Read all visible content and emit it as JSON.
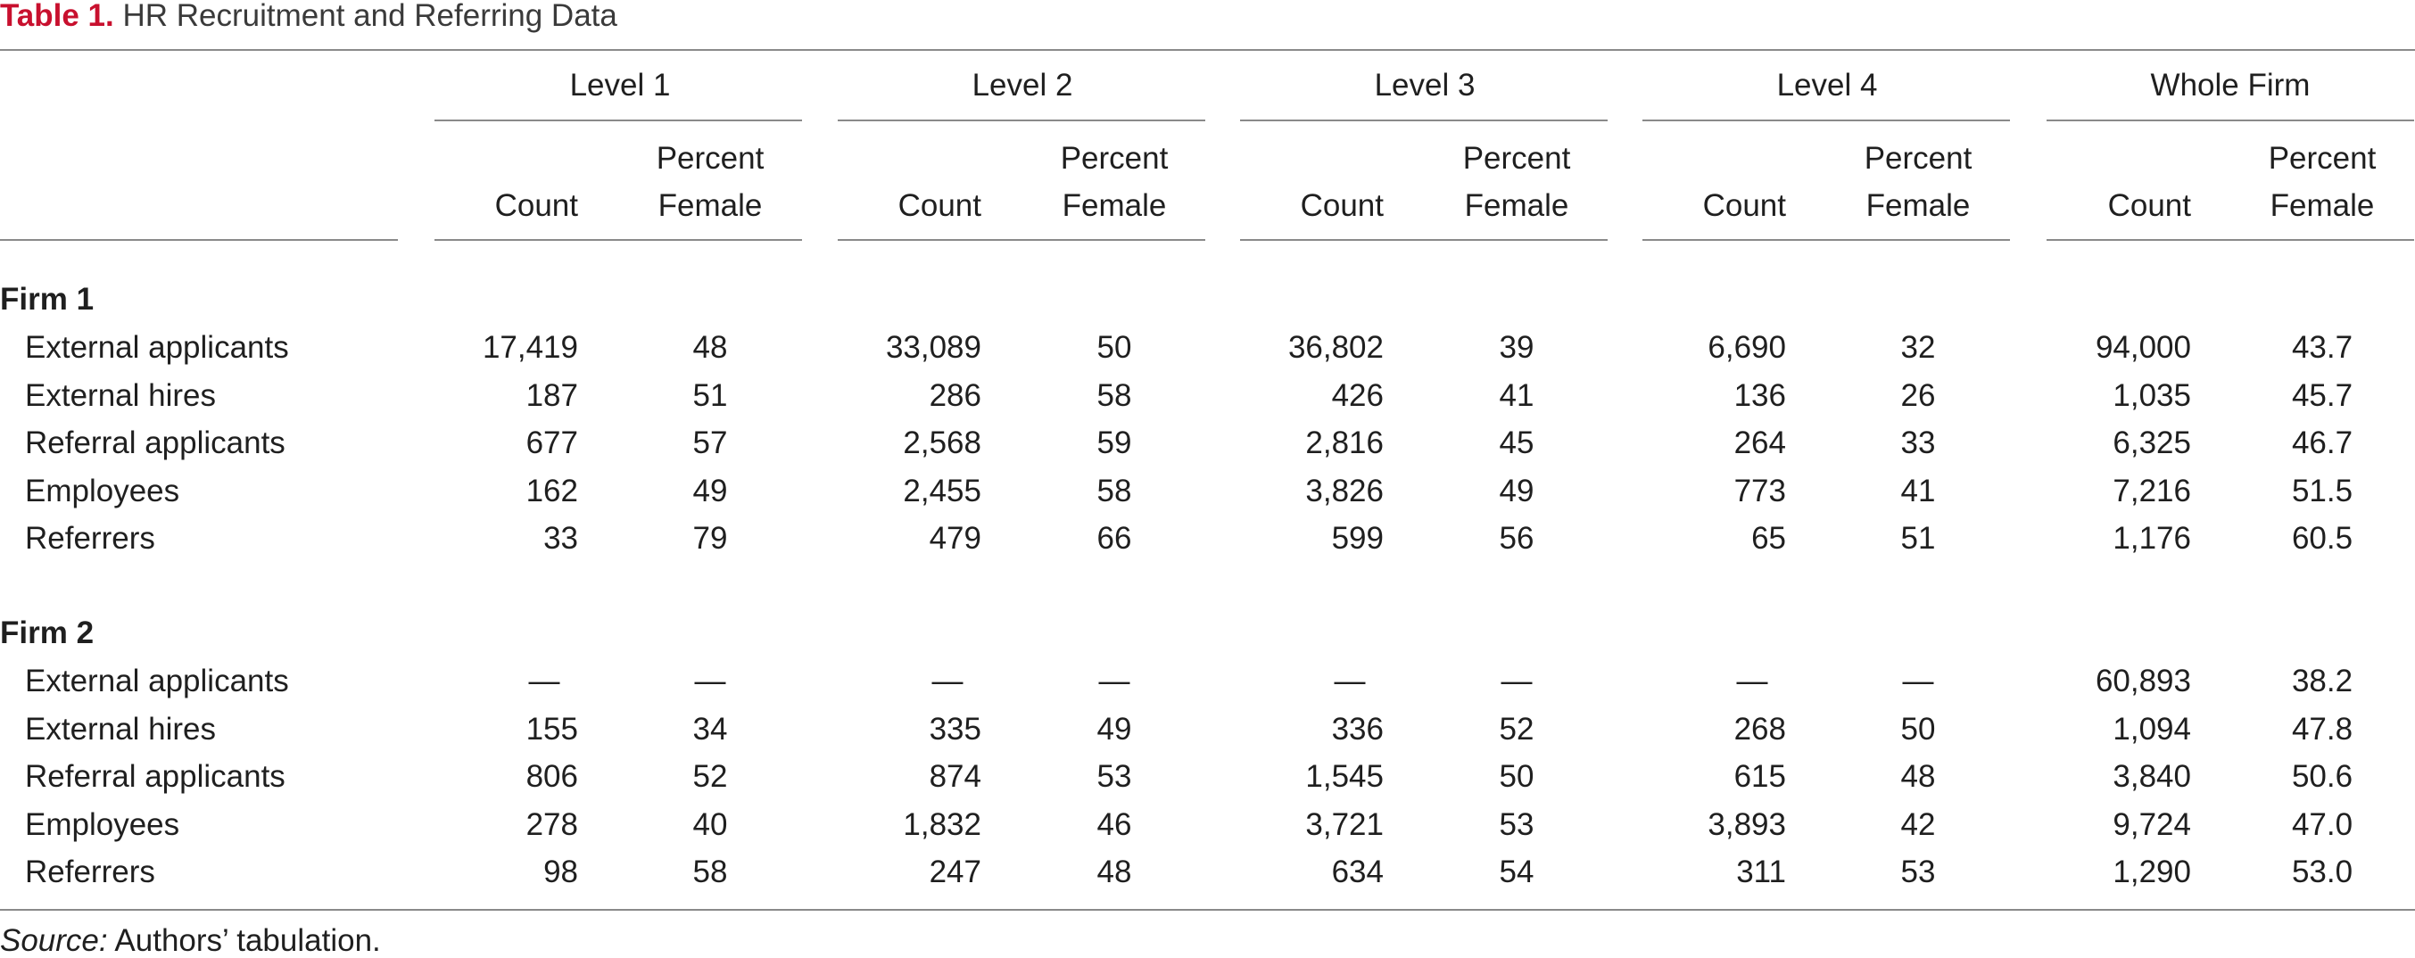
{
  "title": {
    "label": "Table 1.",
    "text": "HR Recruitment and Referring Data"
  },
  "columns": {
    "groups": [
      "Level 1",
      "Level 2",
      "Level 3",
      "Level 4",
      "Whole Firm"
    ],
    "count_label": "Count",
    "percent_label_line1": "Percent",
    "percent_label_line2": "Female"
  },
  "sections": [
    {
      "name": "Firm 1",
      "rows": [
        {
          "label": "External applicants",
          "values": [
            "17,419",
            "48",
            "33,089",
            "50",
            "36,802",
            "39",
            "6,690",
            "32",
            "94,000",
            "43.7"
          ]
        },
        {
          "label": "External hires",
          "values": [
            "187",
            "51",
            "286",
            "58",
            "426",
            "41",
            "136",
            "26",
            "1,035",
            "45.7"
          ]
        },
        {
          "label": "Referral applicants",
          "values": [
            "677",
            "57",
            "2,568",
            "59",
            "2,816",
            "45",
            "264",
            "33",
            "6,325",
            "46.7"
          ]
        },
        {
          "label": "Employees",
          "values": [
            "162",
            "49",
            "2,455",
            "58",
            "3,826",
            "49",
            "773",
            "41",
            "7,216",
            "51.5"
          ]
        },
        {
          "label": "Referrers",
          "values": [
            "33",
            "79",
            "479",
            "66",
            "599",
            "56",
            "65",
            "51",
            "1,176",
            "60.5"
          ]
        }
      ]
    },
    {
      "name": "Firm 2",
      "rows": [
        {
          "label": "External applicants",
          "values": [
            "—",
            "—",
            "—",
            "—",
            "—",
            "—",
            "—",
            "—",
            "60,893",
            "38.2"
          ]
        },
        {
          "label": "External hires",
          "values": [
            "155",
            "34",
            "335",
            "49",
            "336",
            "52",
            "268",
            "50",
            "1,094",
            "47.8"
          ]
        },
        {
          "label": "Referral applicants",
          "values": [
            "806",
            "52",
            "874",
            "53",
            "1,545",
            "50",
            "615",
            "48",
            "3,840",
            "50.6"
          ]
        },
        {
          "label": "Employees",
          "values": [
            "278",
            "40",
            "1,832",
            "46",
            "3,721",
            "53",
            "3,893",
            "42",
            "9,724",
            "47.0"
          ]
        },
        {
          "label": "Referrers",
          "values": [
            "98",
            "58",
            "247",
            "48",
            "634",
            "54",
            "311",
            "53",
            "1,290",
            "53.0"
          ]
        }
      ]
    }
  ],
  "source": {
    "label": "Source:",
    "text": "Authors’ tabulation."
  }
}
